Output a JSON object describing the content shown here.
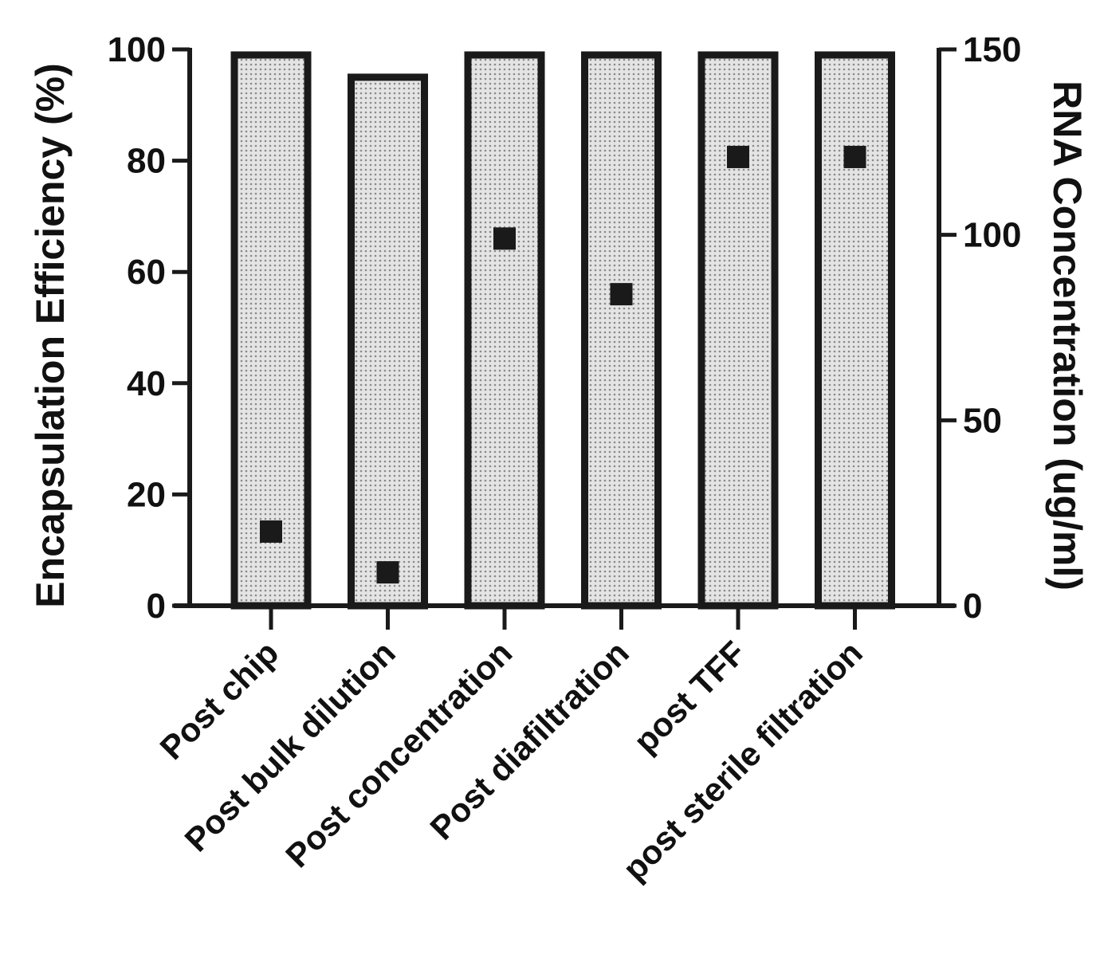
{
  "chart_data": {
    "type": "bar",
    "categories": [
      "Post chip",
      "Post bulk dilution",
      "Post concentration",
      "Post diafiltration",
      "post TFF",
      "post sterile filtration"
    ],
    "series": [
      {
        "axis": "left",
        "kind": "bar",
        "values": [
          99,
          95,
          99,
          99,
          99,
          99
        ]
      },
      {
        "axis": "right",
        "kind": "scatter",
        "values": [
          20,
          9,
          99,
          84,
          121,
          121
        ]
      }
    ],
    "ylabel": "Encapsulation Efficiency (%)",
    "y2label": "RNA Concentration (ug/ml)",
    "ylim": [
      0,
      100
    ],
    "y2lim": [
      0,
      150
    ],
    "yticks": [
      "0",
      "20",
      "40",
      "60",
      "80",
      "100"
    ],
    "y2ticks": [
      "0",
      "50",
      "100",
      "150"
    ],
    "grid": false,
    "legend": "none",
    "colors": {
      "bar_fill": "#d6d6d6",
      "bar_stroke": "#1a1a1a",
      "marker": "#1a1a1a",
      "axis": "#1a1a1a"
    }
  }
}
